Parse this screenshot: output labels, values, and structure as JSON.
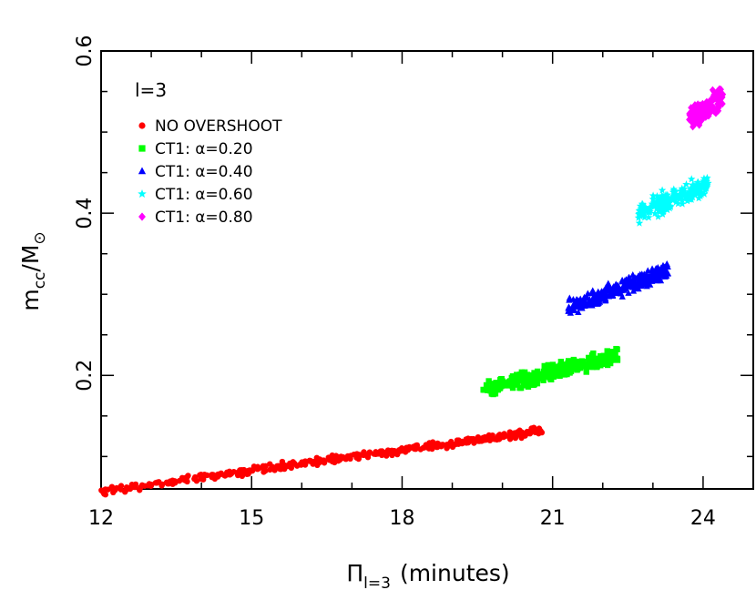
{
  "chart_data": {
    "type": "scatter",
    "xlabel_symbol": "Π",
    "xlabel_sub": "l=3",
    "xlabel_text": "(minutes)",
    "ylabel_main": "m",
    "ylabel_sub1": "cc",
    "ylabel_mid": "/M",
    "ylabel_sub2": "⊙",
    "panel_label": "l=3",
    "xlim": [
      12,
      25
    ],
    "ylim": [
      0.06,
      0.6
    ],
    "xticks": [
      {
        "value": 12,
        "label": "12"
      },
      {
        "value": 15,
        "label": "15"
      },
      {
        "value": 18,
        "label": "18"
      },
      {
        "value": 21,
        "label": "21"
      },
      {
        "value": 24,
        "label": "24"
      }
    ],
    "yticks": [
      {
        "value": 0.2,
        "label": "0.2"
      },
      {
        "value": 0.4,
        "label": "0.4"
      },
      {
        "value": 0.6,
        "label": "0.6"
      }
    ],
    "grid": false,
    "legend_position": "top-left",
    "series": [
      {
        "name": "NO OVERSHOOT",
        "color": "#ff0000",
        "marker": "circle",
        "x_range": [
          12.0,
          20.8
        ],
        "y_at_xmin": 0.057,
        "y_at_xmax": 0.132,
        "spread": 0.004
      },
      {
        "name": "CT1: α=0.20",
        "color": "#00ff00",
        "marker": "square",
        "x_range": [
          19.6,
          22.3
        ],
        "y_at_xmin": 0.18,
        "y_at_xmax": 0.225,
        "spread": 0.008
      },
      {
        "name": "CT1: α=0.40",
        "color": "#0000ff",
        "marker": "triangle",
        "x_range": [
          21.3,
          23.3
        ],
        "y_at_xmin": 0.283,
        "y_at_xmax": 0.33,
        "spread": 0.009
      },
      {
        "name": "CT1: α=0.60",
        "color": "#00ffff",
        "marker": "star",
        "x_range": [
          22.7,
          24.1
        ],
        "y_at_xmin": 0.4,
        "y_at_xmax": 0.435,
        "spread": 0.01
      },
      {
        "name": "CT1: α=0.80",
        "color": "#ff00ff",
        "marker": "diamond",
        "x_range": [
          23.7,
          24.4
        ],
        "y_at_xmin": 0.515,
        "y_at_xmax": 0.545,
        "spread": 0.012
      }
    ]
  }
}
